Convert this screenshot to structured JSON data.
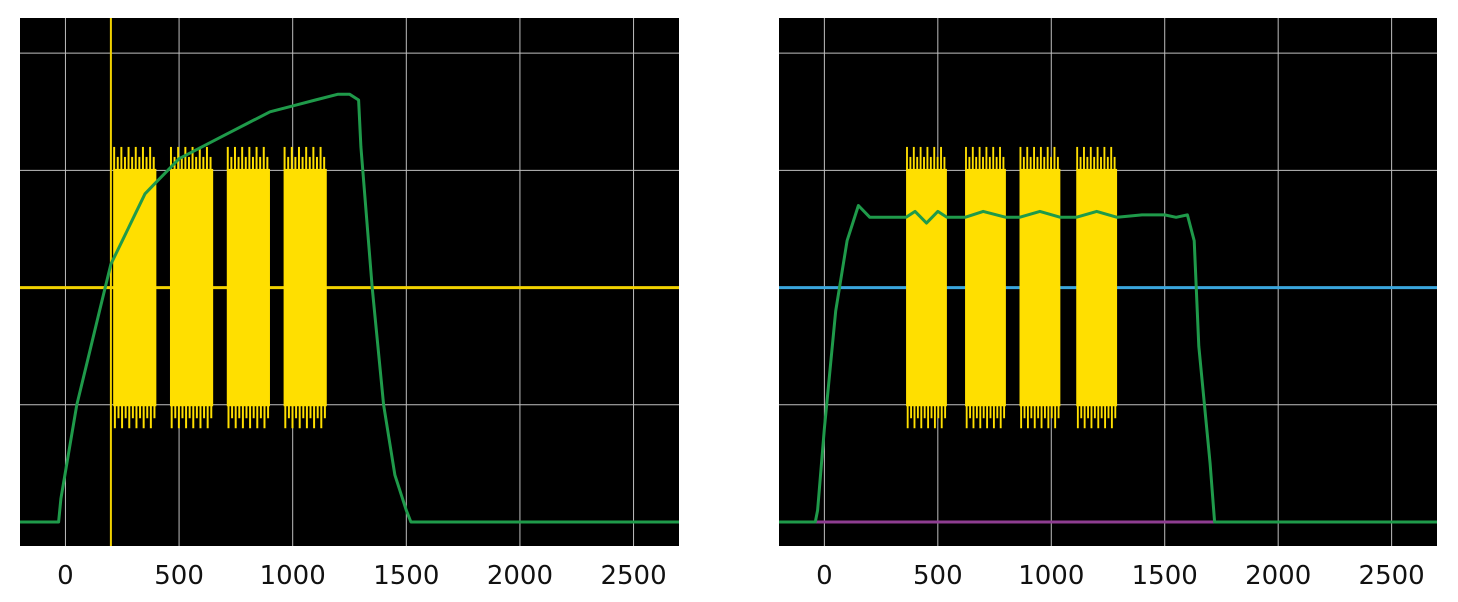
{
  "chart_data": [
    {
      "type": "line",
      "title": "",
      "xlabel": "",
      "ylabel": "",
      "xlim": [
        -200,
        2700
      ],
      "ylim": [
        0,
        4.3
      ],
      "x_ticks": [
        "0",
        "500",
        "1000",
        "1500",
        "2000",
        "2500"
      ],
      "x_tick_values": [
        0,
        500,
        1000,
        1500,
        2000,
        2500
      ],
      "y_grid": [
        1,
        2,
        3,
        4
      ],
      "grid": true,
      "background": "#000000",
      "grid_color": "#bfbfbf",
      "reference_lines": [
        {
          "orientation": "horizontal",
          "value": 2.0,
          "color": "#f2d200"
        },
        {
          "orientation": "vertical",
          "value": 200,
          "color": "#f2d200"
        }
      ],
      "bursts": {
        "color": "#ffdf00",
        "blocks": [
          {
            "start": 210,
            "end": 400,
            "low": 0.8,
            "high": 3.2
          },
          {
            "start": 460,
            "end": 650,
            "low": 0.8,
            "high": 3.2
          },
          {
            "start": 710,
            "end": 900,
            "low": 0.8,
            "high": 3.2
          },
          {
            "start": 960,
            "end": 1150,
            "low": 0.8,
            "high": 3.2
          }
        ]
      },
      "series": [
        {
          "color": "#1f9a4a",
          "x": [
            -200,
            -30,
            -20,
            50,
            100,
            150,
            200,
            250,
            300,
            350,
            400,
            450,
            500,
            600,
            700,
            800,
            900,
            1000,
            1100,
            1200,
            1250,
            1290,
            1300,
            1350,
            1400,
            1450,
            1500,
            1520,
            2000,
            2700
          ],
          "y": [
            0,
            0,
            0.2,
            1.0,
            1.4,
            1.8,
            2.2,
            2.4,
            2.6,
            2.8,
            2.9,
            3.0,
            3.1,
            3.2,
            3.3,
            3.4,
            3.5,
            3.55,
            3.6,
            3.65,
            3.65,
            3.6,
            3.2,
            2.0,
            1.0,
            0.4,
            0.1,
            0,
            0,
            0
          ]
        }
      ]
    },
    {
      "type": "line",
      "title": "",
      "xlabel": "",
      "ylabel": "",
      "xlim": [
        -200,
        2700
      ],
      "ylim": [
        0,
        4.3
      ],
      "x_ticks": [
        "0",
        "500",
        "1000",
        "1500",
        "2000",
        "2500"
      ],
      "x_tick_values": [
        0,
        500,
        1000,
        1500,
        2000,
        2500
      ],
      "y_grid": [
        1,
        2,
        3,
        4
      ],
      "grid": true,
      "background": "#000000",
      "grid_color": "#bfbfbf",
      "reference_lines": [
        {
          "orientation": "horizontal",
          "value": 2.0,
          "color": "#3aa6dd"
        },
        {
          "orientation": "horizontal",
          "value": 0.0,
          "color": "#8e3d91"
        }
      ],
      "bursts": {
        "color": "#ffdf00",
        "blocks": [
          {
            "start": 360,
            "end": 540,
            "low": 0.8,
            "high": 3.2
          },
          {
            "start": 620,
            "end": 800,
            "low": 0.8,
            "high": 3.2
          },
          {
            "start": 860,
            "end": 1040,
            "low": 0.8,
            "high": 3.2
          },
          {
            "start": 1110,
            "end": 1290,
            "low": 0.8,
            "high": 3.2
          }
        ]
      },
      "series": [
        {
          "color": "#1f9a4a",
          "x": [
            -200,
            -40,
            -30,
            0,
            50,
            100,
            150,
            200,
            250,
            360,
            400,
            450,
            500,
            540,
            620,
            700,
            800,
            860,
            950,
            1040,
            1110,
            1200,
            1290,
            1400,
            1500,
            1550,
            1600,
            1630,
            1650,
            1700,
            1720,
            2000,
            2700
          ],
          "y": [
            0,
            0,
            0.1,
            0.8,
            1.8,
            2.4,
            2.7,
            2.6,
            2.6,
            2.6,
            2.65,
            2.55,
            2.65,
            2.6,
            2.6,
            2.65,
            2.6,
            2.6,
            2.65,
            2.6,
            2.6,
            2.65,
            2.6,
            2.62,
            2.62,
            2.6,
            2.62,
            2.4,
            1.5,
            0.5,
            0,
            0,
            0
          ]
        }
      ]
    }
  ]
}
